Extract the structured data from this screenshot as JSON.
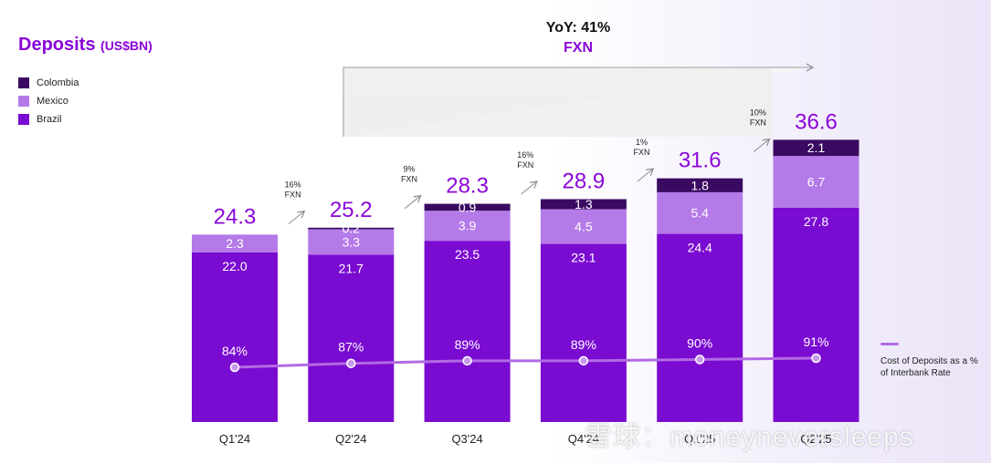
{
  "title": "Deposits",
  "unit": "(US$BN)",
  "yoy_label": "YoY: 41%",
  "fxn_label": "FXN",
  "line_legend": "Cost of Deposits as a % of Interbank Rate",
  "watermark": "雪球：moneyneversleeps",
  "colors": {
    "colombia": "#3a0a61",
    "mexico": "#b47ae8",
    "brazil": "#7a0bd1",
    "line": "#b26ae3",
    "total": "#8a05d8"
  },
  "chart_data": {
    "type": "bar",
    "stacked": true,
    "title": "Deposits (US$BN)",
    "categories": [
      "Q1'24",
      "Q2'24",
      "Q3'24",
      "Q4'24",
      "Q1'25",
      "Q2'25"
    ],
    "series": [
      {
        "name": "Brazil",
        "key": "brazil",
        "values": [
          22.0,
          21.7,
          23.5,
          23.1,
          24.4,
          27.8
        ],
        "labels": [
          "22.0",
          "21.7",
          "23.5",
          "23.1",
          "24.4",
          "27.8"
        ]
      },
      {
        "name": "Mexico",
        "key": "mexico",
        "values": [
          2.3,
          3.3,
          3.9,
          4.5,
          5.4,
          6.7
        ],
        "labels": [
          "2.3",
          "3.3",
          "3.9",
          "4.5",
          "5.4",
          "6.7"
        ]
      },
      {
        "name": "Colombia",
        "key": "colombia",
        "values": [
          0,
          0.2,
          0.9,
          1.3,
          1.8,
          2.1
        ],
        "labels": [
          "",
          "0.2",
          "0.9",
          "1.3",
          "1.8",
          "2.1"
        ]
      }
    ],
    "legend": [
      "Colombia",
      "Mexico",
      "Brazil"
    ],
    "totals": [
      "24.3",
      "25.2",
      "28.3",
      "28.9",
      "31.6",
      "36.6"
    ],
    "growth_labels": [
      {
        "pct": "16%",
        "fxn": "FXN"
      },
      {
        "pct": "9%",
        "fxn": "FXN"
      },
      {
        "pct": "16%",
        "fxn": "FXN"
      },
      {
        "pct": "1%",
        "fxn": "FXN"
      },
      {
        "pct": "10%",
        "fxn": "FXN"
      }
    ],
    "line_series": {
      "name": "Cost of Deposits as a % of Interbank Rate",
      "values": [
        84,
        87,
        89,
        89,
        90,
        91
      ],
      "labels": [
        "84%",
        "87%",
        "89%",
        "89%",
        "90%",
        "91%"
      ]
    },
    "ylim": [
      0,
      40
    ]
  }
}
